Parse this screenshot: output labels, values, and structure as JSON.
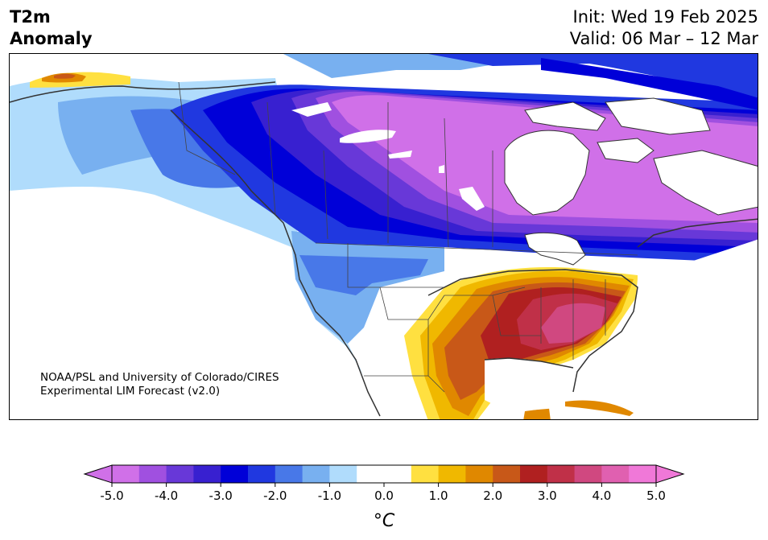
{
  "header": {
    "title_line1": "T2m",
    "title_line2": "Anomaly",
    "init": "Init: Wed 19 Feb 2025",
    "valid": "Valid: 06 Mar – 12 Mar"
  },
  "map": {
    "credit_line1": "NOAA/PSL and University of Colorado/CIRES",
    "credit_line2": "Experimental LIM Forecast (v2.0)"
  },
  "colorbar": {
    "unit": "°C",
    "ticks": [
      "-5.0",
      "-4.0",
      "-3.0",
      "-2.0",
      "-1.0",
      "0.0",
      "1.0",
      "2.0",
      "3.0",
      "4.0",
      "5.0"
    ],
    "colors": [
      "#d070e8",
      "#a050e0",
      "#6838d8",
      "#3820d0",
      "#0000d8",
      "#2038e0",
      "#4878e8",
      "#78b0f0",
      "#b0dcfc",
      "#ffffff",
      "#ffffff",
      "#ffe040",
      "#f0b800",
      "#e08800",
      "#c85818",
      "#b02020",
      "#c03048",
      "#d04880",
      "#e060b0",
      "#f078d8"
    ]
  },
  "legend_colors": {
    "purple": "#d070e8",
    "deep_blue": "#0000d8",
    "light_blue": "#b0dcfc",
    "red": "#b02020",
    "yellow": "#ffe040"
  }
}
